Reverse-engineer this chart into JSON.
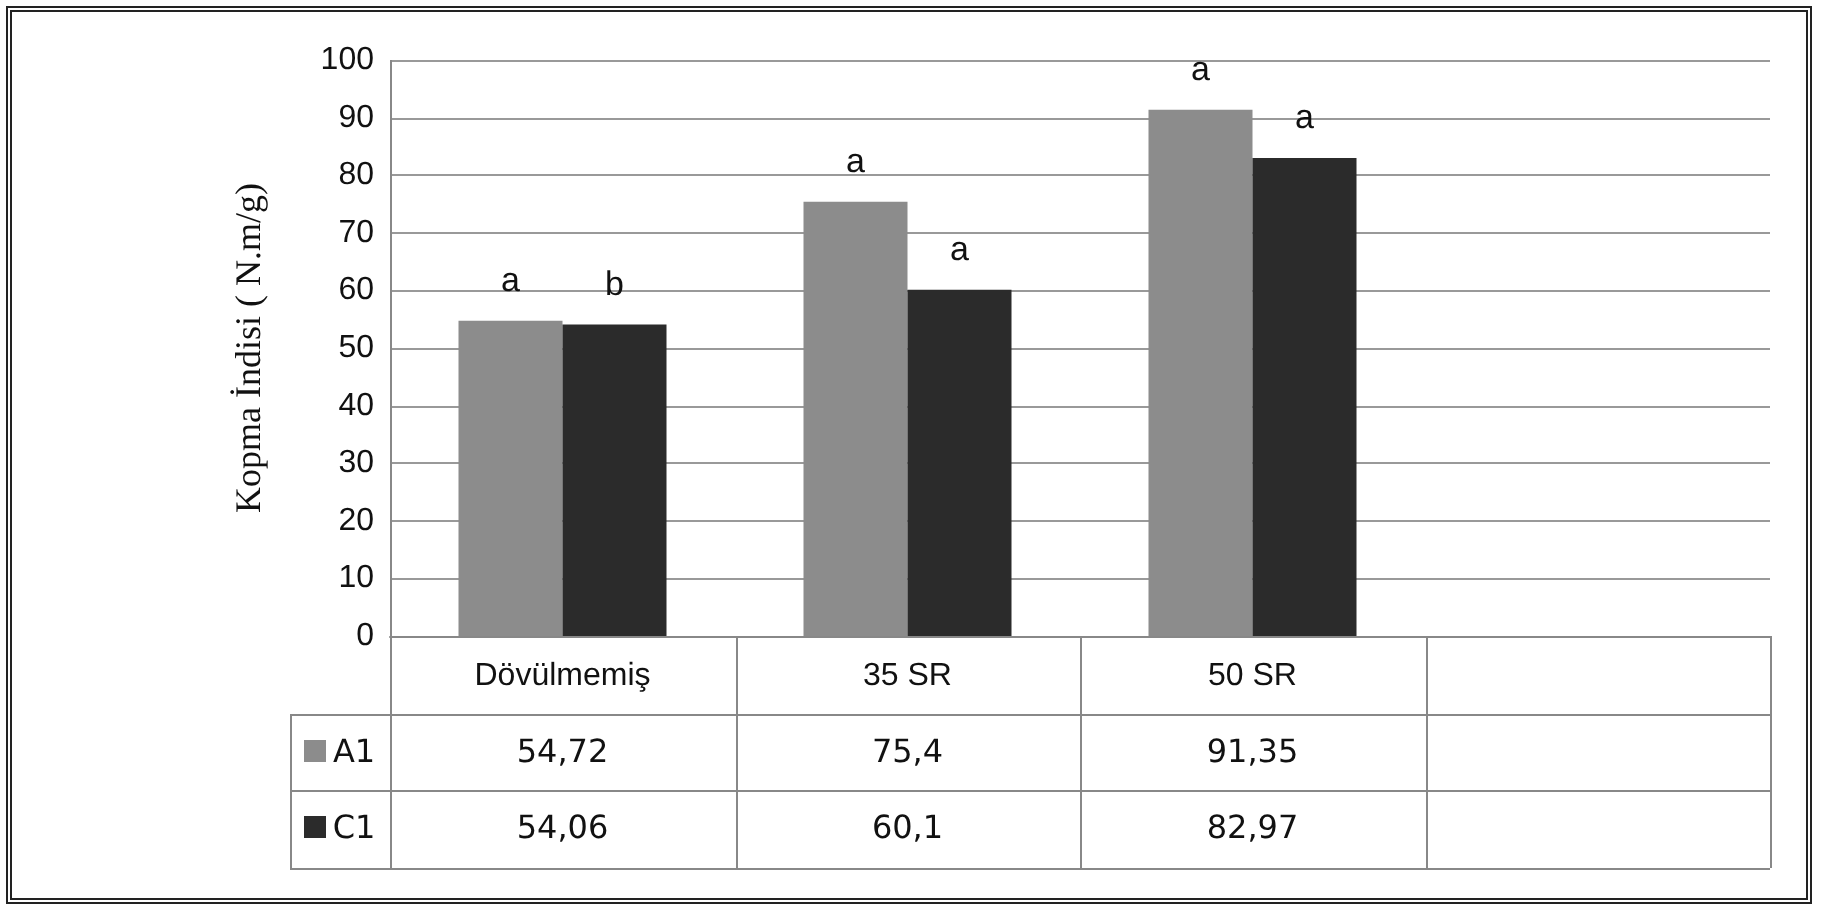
{
  "chart_data": {
    "type": "bar",
    "ylabel": "Kopma İndisi ( N.m/g)",
    "categories": [
      "Dövülmemiş",
      "35 SR",
      "50 SR",
      null
    ],
    "series": [
      {
        "name": "A1",
        "color": "#8c8c8c",
        "values": [
          54.72,
          75.4,
          91.35,
          null
        ],
        "value_labels": [
          "54,72",
          "75,4",
          "91,35",
          null
        ]
      },
      {
        "name": "C1",
        "color": "#2b2b2b",
        "values": [
          54.06,
          60.1,
          82.97,
          null
        ],
        "value_labels": [
          "54,06",
          "60,1",
          "82,97",
          null
        ]
      }
    ],
    "ylim": [
      0,
      100
    ],
    "yticks": [
      0,
      10,
      20,
      30,
      40,
      50,
      60,
      70,
      80,
      90,
      100
    ],
    "grid": "y",
    "legend": "bottom",
    "annotations": [
      {
        "text": "a",
        "x": "Dövülmemiş",
        "y": 54.72
      },
      {
        "text": "b",
        "x": "Dövülmemiş",
        "y": 54.06
      },
      {
        "text": "a",
        "x": "35 SR",
        "y": 75.4
      },
      {
        "text": "a",
        "x": "35 SR",
        "y": 60.1
      },
      {
        "text": "a",
        "x": "50 SR",
        "y": 91.35
      },
      {
        "text": "a",
        "x": "50 SR",
        "y": 82.97
      }
    ]
  }
}
